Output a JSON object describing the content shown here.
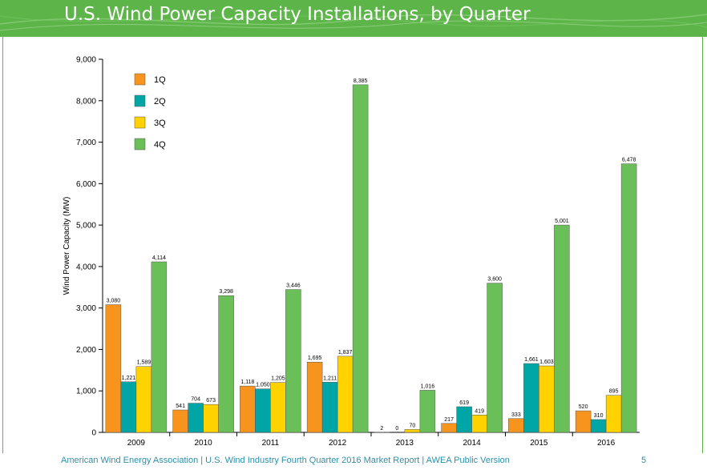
{
  "header": {
    "title": "U.S. Wind Power Capacity Installations, by Quarter"
  },
  "footer": {
    "text": "American Wind Energy Association  |  U.S. Wind Industry Fourth Quarter 2016 Market Report  |  AWEA Public Version",
    "page_number": "5"
  },
  "colors": {
    "header_green": "#5db54a",
    "footer_text": "#2e8fa8",
    "1Q": "#f7941d",
    "2Q": "#00a6a6",
    "3Q": "#ffd200",
    "4Q": "#6bbf59"
  },
  "chart_data": {
    "type": "bar",
    "title": "",
    "xlabel": "",
    "ylabel": "Wind Power Capacity (MW)",
    "ylim": [
      0,
      9000
    ],
    "yticks": [
      0,
      1000,
      2000,
      3000,
      4000,
      5000,
      6000,
      7000,
      8000,
      9000
    ],
    "ytick_labels": [
      "0",
      "1,000",
      "2,000",
      "3,000",
      "4,000",
      "5,000",
      "6,000",
      "7,000",
      "8,000",
      "9,000"
    ],
    "grid": false,
    "legend_position": "top-left",
    "categories": [
      "2009",
      "2010",
      "2011",
      "2012",
      "2013",
      "2014",
      "2015",
      "2016"
    ],
    "series": [
      {
        "name": "1Q",
        "color": "#f7941d",
        "values": [
          3080,
          541,
          1118,
          1695,
          2,
          217,
          333,
          520
        ],
        "labels": [
          "3,080",
          "541",
          "1,118",
          "1,695",
          "2",
          "217",
          "333",
          "520"
        ]
      },
      {
        "name": "2Q",
        "color": "#00a6a6",
        "values": [
          1221,
          704,
          1050,
          1211,
          0,
          619,
          1661,
          310
        ],
        "labels": [
          "1,221",
          "704",
          "1,050",
          "1,211",
          "0",
          "619",
          "1,661",
          "310"
        ]
      },
      {
        "name": "3Q",
        "color": "#ffd200",
        "values": [
          1589,
          673,
          1205,
          1837,
          70,
          419,
          1603,
          895
        ],
        "labels": [
          "1,589",
          "673",
          "1,205",
          "1,837",
          "70",
          "419",
          "1,603",
          "895"
        ]
      },
      {
        "name": "4Q",
        "color": "#6bbf59",
        "values": [
          4114,
          3298,
          3446,
          8385,
          1016,
          3600,
          5001,
          6478
        ],
        "labels": [
          "4,114",
          "3,298",
          "3,446",
          "8,385",
          "1,016",
          "3,600",
          "5,001",
          "6,478"
        ]
      }
    ]
  }
}
